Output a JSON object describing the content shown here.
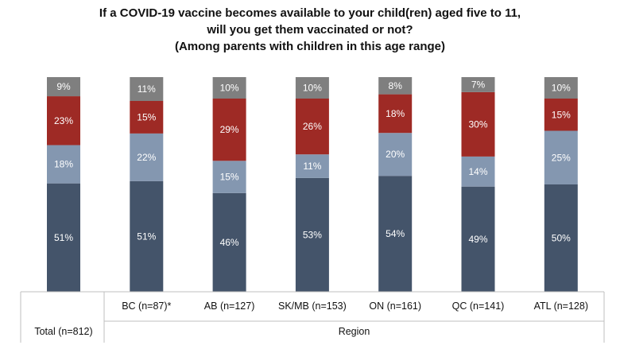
{
  "chart_data": {
    "type": "bar",
    "stacked": true,
    "title_lines": [
      "If a COVID-19 vaccine becomes available to your child(ren) aged five to 11,",
      "will you get them vaccinated or not?",
      "(Among parents with children in this age range)"
    ],
    "categories": [
      "Total (n=812)",
      "BC (n=87)*",
      "AB (n=127)",
      "SK/MB (n=153)",
      "ON (n=161)",
      "QC (n=141)",
      "ATL (n=128)"
    ],
    "group_label": "Region",
    "ylim": [
      0,
      100
    ],
    "series": [
      {
        "values": [
          51,
          51,
          46,
          53,
          54,
          49,
          50
        ],
        "color": "#44546a"
      },
      {
        "values": [
          18,
          22,
          15,
          11,
          20,
          14,
          25
        ],
        "color": "#8497b0"
      },
      {
        "values": [
          23,
          15,
          29,
          26,
          18,
          30,
          15
        ],
        "color": "#9e2a25"
      },
      {
        "values": [
          9,
          11,
          10,
          10,
          8,
          7,
          10
        ],
        "color": "#7f7f7f"
      }
    ],
    "value_suffix": "%",
    "grid": false,
    "legend": "none"
  }
}
